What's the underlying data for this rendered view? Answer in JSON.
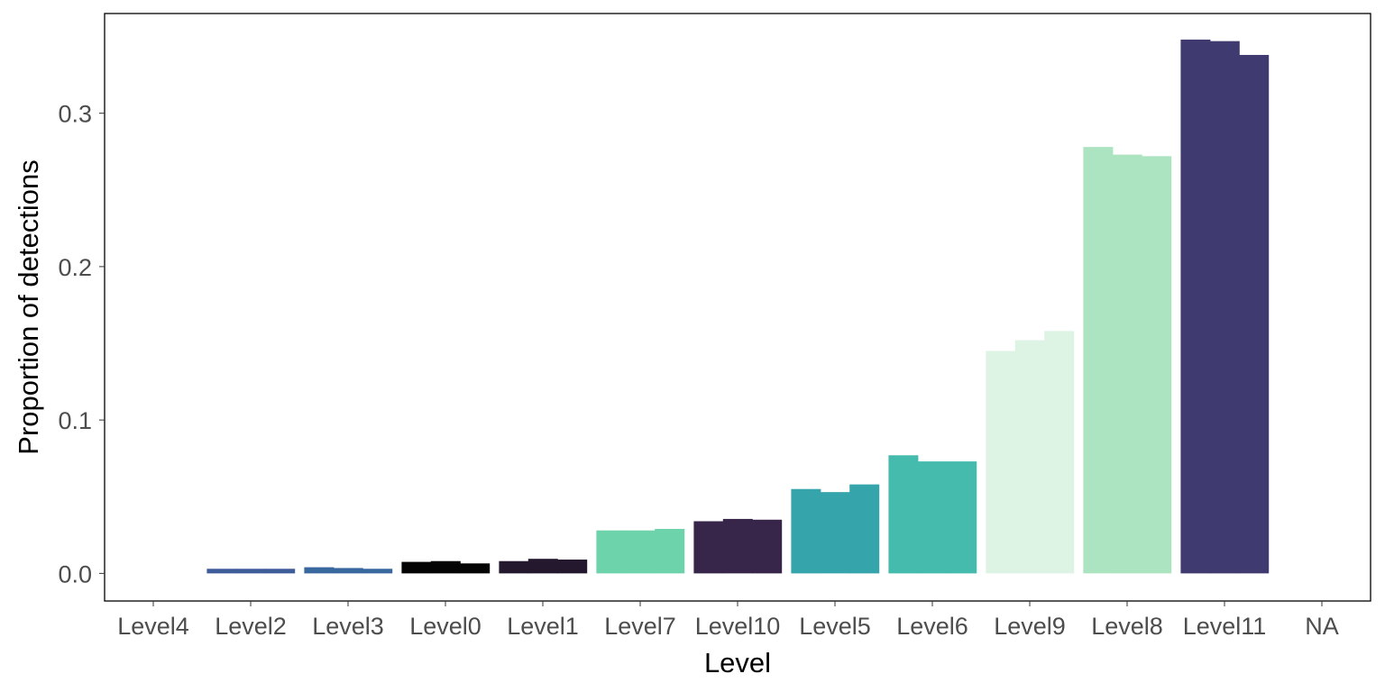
{
  "chart_data": {
    "type": "bar",
    "xlabel": "Level",
    "ylabel": "Proportion of detections",
    "ylim": [
      -0.018,
      0.365
    ],
    "yticks": [
      0.0,
      0.1,
      0.2,
      0.3
    ],
    "ytick_labels": [
      "0.0",
      "0.1",
      "0.2",
      "0.3"
    ],
    "grid": false,
    "legend": "none",
    "groups": [
      {
        "label": "Level4",
        "color": "#3b5a9a",
        "values": [
          0.0,
          0.0,
          0.0
        ]
      },
      {
        "label": "Level2",
        "color": "#3e5c99",
        "values": [
          0.003,
          0.003,
          0.003
        ]
      },
      {
        "label": "Level3",
        "color": "#39689e",
        "values": [
          0.004,
          0.0035,
          0.003
        ]
      },
      {
        "label": "Level0",
        "color": "#040404",
        "values": [
          0.0075,
          0.008,
          0.0065
        ]
      },
      {
        "label": "Level1",
        "color": "#24182f",
        "values": [
          0.008,
          0.0095,
          0.009
        ]
      },
      {
        "label": "Level7",
        "color": "#6dd3ab",
        "values": [
          0.028,
          0.028,
          0.029
        ]
      },
      {
        "label": "Level10",
        "color": "#38264a",
        "values": [
          0.034,
          0.0355,
          0.035
        ]
      },
      {
        "label": "Level5",
        "color": "#36a5ab",
        "values": [
          0.055,
          0.053,
          0.058
        ]
      },
      {
        "label": "Level6",
        "color": "#45bbad",
        "values": [
          0.077,
          0.073,
          0.073
        ]
      },
      {
        "label": "Level9",
        "color": "#ddf4e4",
        "values": [
          0.145,
          0.152,
          0.158
        ]
      },
      {
        "label": "Level8",
        "color": "#ace4c1",
        "values": [
          0.278,
          0.273,
          0.272
        ]
      },
      {
        "label": "Level11",
        "color": "#3f3a70",
        "values": [
          0.348,
          0.347,
          0.338
        ]
      },
      {
        "label": "NA",
        "color": "#3f3a70",
        "values": []
      }
    ]
  }
}
